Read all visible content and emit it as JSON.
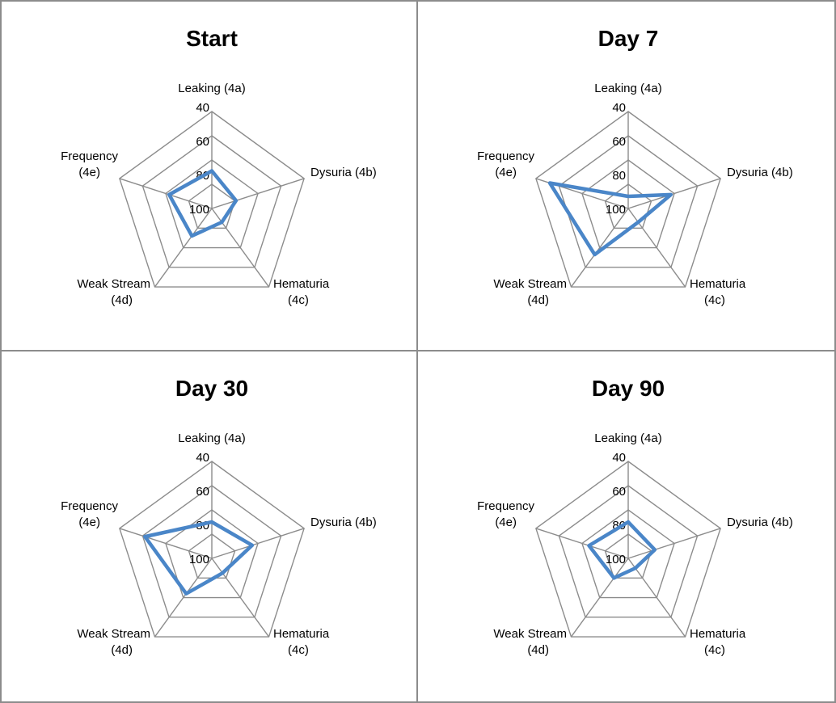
{
  "chart_data": [
    {
      "type": "radar",
      "title": "Start",
      "axes": [
        "Leaking (4a)",
        "Dysuria (4b)",
        "Hematuria (4c)",
        "Weak Stream (4d)",
        "Frequency (4e)"
      ],
      "axis_label_lines": [
        [
          "Leaking (4a)"
        ],
        [
          "Dysuria (4b)"
        ],
        [
          "Hematuria",
          "(4c)"
        ],
        [
          "Weak Stream",
          "(4d)"
        ],
        [
          "Frequency",
          "(4e)"
        ]
      ],
      "ticks": [
        "40",
        "60",
        "80",
        "100"
      ],
      "scale": "reversed",
      "range": [
        40,
        120
      ],
      "series": [
        {
          "values": [
            89,
            99,
            106,
            92,
            83
          ]
        }
      ]
    },
    {
      "type": "radar",
      "title": "Day 7",
      "axes": [
        "Leaking (4a)",
        "Dysuria (4b)",
        "Hematuria (4c)",
        "Weak Stream (4d)",
        "Frequency (4e)"
      ],
      "axis_label_lines": [
        [
          "Leaking (4a)"
        ],
        [
          "Dysuria (4b)"
        ],
        [
          "Hematuria",
          "(4c)"
        ],
        [
          "Weak Stream",
          "(4d)"
        ],
        [
          "Frequency",
          "(4e)"
        ]
      ],
      "ticks": [
        "40",
        "60",
        "80",
        "100"
      ],
      "scale": "reversed",
      "range": [
        40,
        120
      ],
      "series": [
        {
          "values": [
            110,
            83,
            106,
            73,
            52
          ]
        }
      ]
    },
    {
      "type": "radar",
      "title": "Day 30",
      "axes": [
        "Leaking (4a)",
        "Dysuria (4b)",
        "Hematuria (4c)",
        "Weak Stream (4d)",
        "Frequency (4e)"
      ],
      "axis_label_lines": [
        [
          "Leaking (4a)"
        ],
        [
          "Dysuria (4b)"
        ],
        [
          "Hematuria",
          "(4c)"
        ],
        [
          "Weak Stream",
          "(4d)"
        ],
        [
          "Frequency",
          "(4e)"
        ]
      ],
      "ticks": [
        "40",
        "60",
        "80",
        "100"
      ],
      "scale": "reversed",
      "range": [
        40,
        120
      ],
      "series": [
        {
          "values": [
            90,
            85,
            105,
            84,
            62
          ]
        }
      ]
    },
    {
      "type": "radar",
      "title": "Day 90",
      "axes": [
        "Leaking (4a)",
        "Dysuria (4b)",
        "Hematuria (4c)",
        "Weak Stream (4d)",
        "Frequency (4e)"
      ],
      "axis_label_lines": [
        [
          "Leaking (4a)"
        ],
        [
          "Dysuria (4b)"
        ],
        [
          "Hematuria",
          "(4c)"
        ],
        [
          "Weak Stream",
          "(4d)"
        ],
        [
          "Frequency",
          "(4e)"
        ]
      ],
      "ticks": [
        "40",
        "60",
        "80",
        "100"
      ],
      "scale": "reversed",
      "range": [
        40,
        120
      ],
      "series": [
        {
          "values": [
            90,
            97,
            110,
            100,
            86
          ]
        }
      ]
    }
  ],
  "colors": {
    "series": "#4a86c8",
    "grid": "#8c8c8c",
    "frame": "#8c8c8c"
  }
}
